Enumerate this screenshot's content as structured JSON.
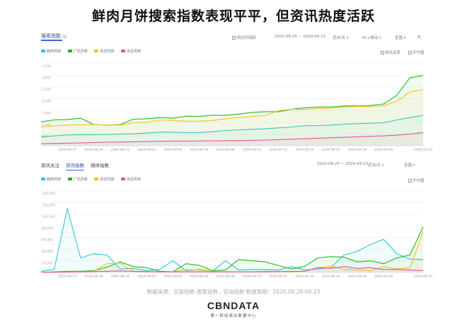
{
  "page": {
    "title": "鲜肉月饼搜索指数表现平平，但资讯热度活跃",
    "source": "数据来源：百度指数-搜索指数，咨询指数     数据周期：2020.08.28-09.23",
    "logo": "CBNDATA",
    "logo_sub": "第一财经商业数据中心"
  },
  "panel1": {
    "title": "搜索指数",
    "help": "?",
    "compare_label": "对比时间段",
    "date_range": "2020-08-25 ~ 2020-09-23",
    "period": "近30天",
    "device": "PC+移动",
    "region": "全国",
    "opt_news": "资讯关系",
    "opt_avg": "平均值"
  },
  "panel2": {
    "tabs": [
      "资讯关注",
      "资讯指数",
      "媒体指数"
    ],
    "date_range": "2020-08-25 ~ 2020-09-23",
    "period": "近30天",
    "region": "全国",
    "opt_avg": "平均值"
  },
  "colors": {
    "s1": "#2ec7d6",
    "s2": "#1db81d",
    "s3": "#f2c21b",
    "s4": "#e84fa6"
  },
  "chart_data": [
    {
      "type": "line",
      "x": [
        "2020-08-25",
        "2020-08-26",
        "2020-08-27",
        "2020-08-28",
        "2020-08-29",
        "2020-08-30",
        "2020-08-31",
        "2020-09-01",
        "2020-09-02",
        "2020-09-03",
        "2020-09-04",
        "2020-09-05",
        "2020-09-06",
        "2020-09-07",
        "2020-09-08",
        "2020-09-09",
        "2020-09-10",
        "2020-09-11",
        "2020-09-12",
        "2020-09-13",
        "2020-09-14",
        "2020-09-15",
        "2020-09-16",
        "2020-09-17",
        "2020-09-18",
        "2020-09-19",
        "2020-09-20",
        "2020-09-21",
        "2020-09-22",
        "2020-09-23"
      ],
      "tick_labels": [
        "2020-08-27",
        "2020-08-29",
        "2020-08-31",
        "2020-09-02",
        "2020-09-04",
        "2020-09-06",
        "2020-09-08",
        "2020-09-10",
        "2020-09-12",
        "2020-09-14",
        "2020-09-16",
        "2020-09-18",
        "2020-09-20",
        "2020-09-23"
      ],
      "y_ticks": [
        "3,500",
        "3,000",
        "2,500",
        "2,000",
        "1,500",
        "1,000",
        "500"
      ],
      "ylim": [
        0,
        3500
      ],
      "series": [
        {
          "name": "鲜肉月饼",
          "color": "#2ec7d6",
          "values": [
            380,
            420,
            460,
            470,
            470,
            480,
            500,
            510,
            540,
            580,
            580,
            560,
            560,
            600,
            650,
            680,
            700,
            720,
            760,
            800,
            850,
            860,
            880,
            920,
            940,
            960,
            980,
            1100,
            1200,
            1300
          ]
        },
        {
          "name": "广式月饼",
          "color": "#1db81d",
          "values": [
            1020,
            1100,
            1120,
            1180,
            900,
            880,
            900,
            1130,
            1150,
            1200,
            1180,
            1260,
            1250,
            1300,
            1300,
            1350,
            1420,
            1450,
            1450,
            1550,
            1620,
            1650,
            1650,
            1700,
            1700,
            1720,
            1780,
            2150,
            2900,
            3000
          ]
        },
        {
          "name": "苏式月饼",
          "color": "#f2c21b",
          "values": [
            800,
            850,
            880,
            900,
            900,
            880,
            880,
            980,
            1000,
            1100,
            1080,
            1050,
            1050,
            1080,
            1150,
            1200,
            1250,
            1280,
            1500,
            1550,
            1550,
            1580,
            1600,
            1650,
            1680,
            1680,
            1700,
            1900,
            2300,
            2400
          ]
        },
        {
          "name": "京式月饼",
          "color": "#e84fa6",
          "values": [
            90,
            100,
            110,
            120,
            140,
            150,
            160,
            170,
            180,
            190,
            200,
            200,
            205,
            210,
            215,
            220,
            230,
            240,
            260,
            280,
            300,
            320,
            340,
            360,
            380,
            400,
            420,
            450,
            500,
            560
          ]
        }
      ]
    },
    {
      "type": "line",
      "x": [
        "2020-08-25",
        "2020-08-26",
        "2020-08-27",
        "2020-08-28",
        "2020-08-29",
        "2020-08-30",
        "2020-08-31",
        "2020-09-01",
        "2020-09-02",
        "2020-09-03",
        "2020-09-04",
        "2020-09-05",
        "2020-09-06",
        "2020-09-07",
        "2020-09-08",
        "2020-09-09",
        "2020-09-10",
        "2020-09-11",
        "2020-09-12",
        "2020-09-13",
        "2020-09-14",
        "2020-09-15",
        "2020-09-16",
        "2020-09-17",
        "2020-09-18",
        "2020-09-19",
        "2020-09-20",
        "2020-09-21",
        "2020-09-22",
        "2020-09-23"
      ],
      "tick_labels": [
        "2020-08-27",
        "2020-08-29",
        "2020-08-31",
        "2020-09-02",
        "2020-09-04",
        "2020-09-06",
        "2020-09-08",
        "2020-09-10",
        "2020-09-12",
        "2020-09-14",
        "2020-09-16",
        "2020-09-18",
        "2020-09-20",
        "2020-09-23"
      ],
      "y_ticks": [
        "140,000",
        "120,000",
        "100,000",
        "80,000",
        "60,000",
        "40,000",
        "20,000"
      ],
      "ylim": [
        0,
        140000
      ],
      "series": [
        {
          "name": "鲜肉月饼",
          "color": "#2ec7d6",
          "values": [
            2000,
            5000,
            110000,
            25000,
            32000,
            30000,
            6000,
            7000,
            3000,
            5000,
            20000,
            3000,
            5000,
            2000,
            20000,
            4000,
            5000,
            5000,
            4000,
            10000,
            4000,
            6000,
            8000,
            30000,
            36000,
            48000,
            57000,
            32000,
            23000,
            22000
          ]
        },
        {
          "name": "广式月饼",
          "color": "#1db81d",
          "values": [
            0,
            1000,
            2000,
            2000,
            3000,
            9000,
            18000,
            10000,
            8000,
            2000,
            1000,
            15000,
            12000,
            3000,
            4000,
            22000,
            20000,
            18000,
            12000,
            6000,
            10000,
            25000,
            27000,
            26000,
            18000,
            20000,
            15000,
            25000,
            30000,
            78000
          ]
        },
        {
          "name": "苏式月饼",
          "color": "#f2c21b",
          "values": [
            0,
            500,
            1000,
            1500,
            2000,
            15000,
            16000,
            2000,
            1000,
            1000,
            1000,
            5000,
            4000,
            2000,
            1000,
            1000,
            1000,
            2000,
            1000,
            1000,
            2000,
            8000,
            11000,
            5000,
            4000,
            3000,
            10000,
            6000,
            8000,
            70000
          ]
        },
        {
          "name": "京式月饼",
          "color": "#e84fa6",
          "values": [
            0,
            0,
            500,
            1000,
            1500,
            2000,
            2500,
            2000,
            1500,
            1000,
            1000,
            1000,
            1000,
            800,
            800,
            800,
            900,
            1000,
            1500,
            1800,
            2000,
            8000,
            7000,
            10000,
            7000,
            8000,
            5000,
            5000,
            4000,
            3000
          ]
        }
      ]
    }
  ]
}
